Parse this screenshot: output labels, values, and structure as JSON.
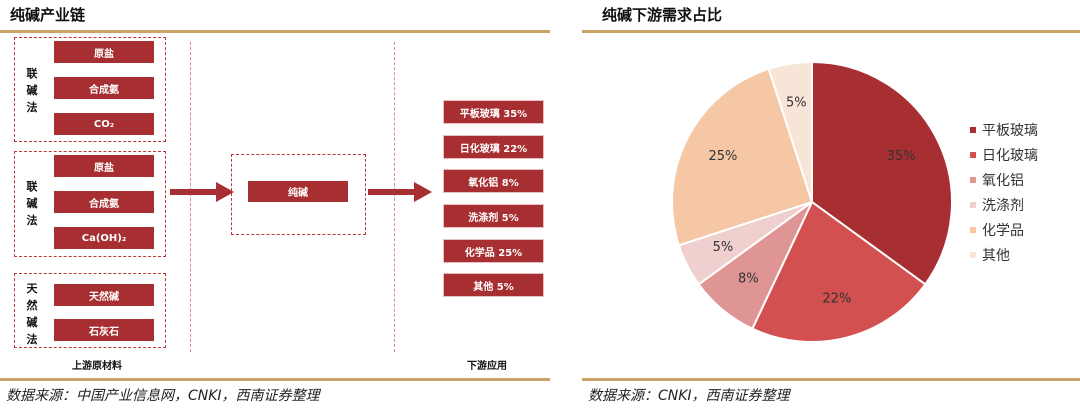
{
  "left_panel": {
    "title": "纯碱产业链",
    "groups": [
      {
        "label": "联碱法",
        "items": [
          "原盐",
          "合成氨",
          "CO₂"
        ]
      },
      {
        "label": "联碱法",
        "items": [
          "原盐",
          "合成氨",
          "Ca(OH)₂"
        ]
      },
      {
        "label": "天然碱法",
        "items": [
          "天然碱",
          "石灰石"
        ]
      }
    ],
    "center_box": "纯碱",
    "outputs": [
      "平板玻璃 35%",
      "日化玻璃 22%",
      "氧化铝 8%",
      "洗涤剂 5%",
      "化学品 25%",
      "其他 5%"
    ],
    "upstream_label": "上游原材料",
    "downstream_label": "下游应用",
    "source": "数据来源：中国产业信息网，CNKI，西南证券整理",
    "colors": {
      "box_red": "#a82f31",
      "dashed_border": "#b8393a",
      "arrow": "#a82f31"
    }
  },
  "right_panel": {
    "title": "纯碱下游需求占比",
    "source": "数据来源：CNKI，西南证券整理"
  },
  "chart_data": {
    "type": "pie",
    "title": "纯碱下游需求占比",
    "legend_position": "right",
    "slices": [
      {
        "label": "平板玻璃",
        "value": 35,
        "display": "35%",
        "color": "#a82f31"
      },
      {
        "label": "日化玻璃",
        "value": 22,
        "display": "22%",
        "color": "#d2504f"
      },
      {
        "label": "氧化铝",
        "value": 8,
        "display": "8%",
        "color": "#e09595"
      },
      {
        "label": "洗涤剂",
        "value": 5,
        "display": "5%",
        "color": "#f0d0cf"
      },
      {
        "label": "化学品",
        "value": 25,
        "display": "25%",
        "color": "#f5c7a5"
      },
      {
        "label": "其他",
        "value": 5,
        "display": "5%",
        "color": "#f9e5d8"
      }
    ]
  },
  "rule_color": "#c9a36a"
}
